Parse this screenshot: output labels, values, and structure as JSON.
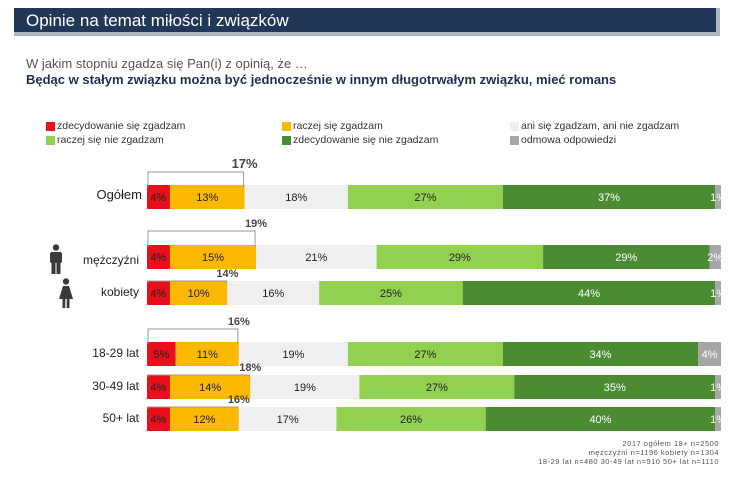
{
  "header": {
    "title": "Opinie na temat miłości i związków"
  },
  "question": "W jakim stopniu zgadza się Pan(i) z opinią, że …",
  "statement": "Będąc w stałym związku można być jednocześnie w innym długotrwałym związku, mieć romans",
  "legend": [
    {
      "label": "zdecydowanie się zgadzam",
      "color": "#e8101a"
    },
    {
      "label": "raczej się zgadzam",
      "color": "#fbb800"
    },
    {
      "label": "ani się zgadzam, ani nie zgadzam",
      "color": "#efefef"
    },
    {
      "label": "raczej się nie zgadzam",
      "color": "#92d050"
    },
    {
      "label": "zdecydowanie się nie zgadzam",
      "color": "#4b8c32"
    },
    {
      "label": "odmowa odpowiedzi",
      "color": "#a6a6a6"
    }
  ],
  "icons": [
    "male-person-icon",
    "female-person-icon"
  ],
  "chart_data": {
    "type": "bar",
    "stacked": true,
    "orientation": "horizontal",
    "categories": [
      "Ogółem",
      "mężczyźni",
      "kobiety",
      "18-29 lat",
      "30-49 lat",
      "50+ lat"
    ],
    "series": [
      {
        "name": "zdecydowanie się zgadzam",
        "values": [
          4,
          4,
          4,
          5,
          4,
          4
        ]
      },
      {
        "name": "raczej się zgadzam",
        "values": [
          13,
          15,
          10,
          11,
          14,
          12
        ]
      },
      {
        "name": "ani się zgadzam, ani nie zgadzam",
        "values": [
          18,
          21,
          16,
          19,
          19,
          17
        ]
      },
      {
        "name": "raczej się nie zgadzam",
        "values": [
          27,
          29,
          25,
          27,
          27,
          26
        ]
      },
      {
        "name": "zdecydowanie się nie zgadzam",
        "values": [
          37,
          29,
          44,
          34,
          35,
          40
        ]
      },
      {
        "name": "odmowa odpowiedzi",
        "values": [
          1,
          2,
          1,
          4,
          1,
          1
        ]
      }
    ],
    "agree_totals": [
      17,
      19,
      14,
      16,
      18,
      16
    ],
    "value_suffix": "%"
  },
  "sources": [
    "2017 ogółem 18+ n=2500",
    "mężczyźni n=1196 kobiety n=1304",
    "18-29 lat n=480 30-49 lat n=910 50+ lat n=1110"
  ]
}
